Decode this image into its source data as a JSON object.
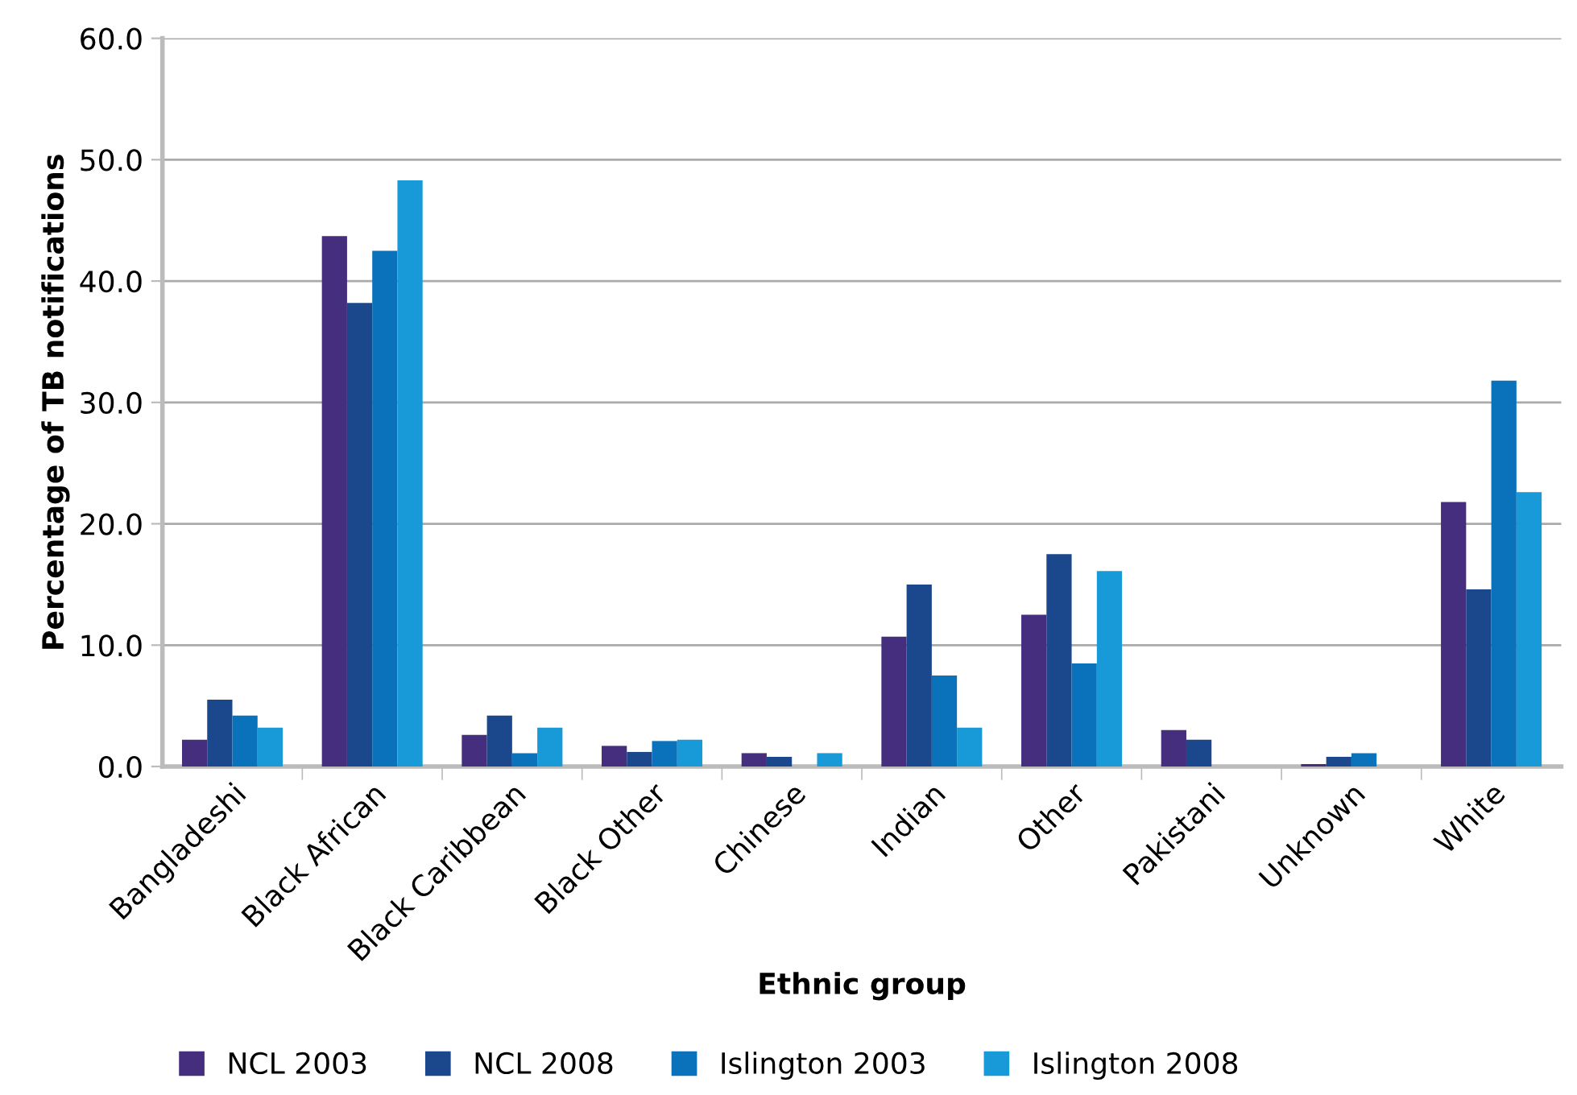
{
  "chart_data": {
    "type": "bar",
    "xlabel": "Ethnic group",
    "ylabel": "Percentage of TB notifications",
    "categories": [
      "Bangladeshi",
      "Black African",
      "Black Caribbean",
      "Black Other",
      "Chinese",
      "Indian",
      "Other",
      "Pakistani",
      "Unknown",
      "White"
    ],
    "series": [
      {
        "name": "NCL 2003",
        "color": "#452e7e",
        "values": [
          2.2,
          43.7,
          2.6,
          1.7,
          1.1,
          10.7,
          12.5,
          3.0,
          0.2,
          21.8
        ]
      },
      {
        "name": "NCL 2008",
        "color": "#1b488c",
        "values": [
          5.5,
          38.2,
          4.2,
          1.2,
          0.8,
          15.0,
          17.5,
          2.2,
          0.8,
          14.6
        ]
      },
      {
        "name": "Islington 2003",
        "color": "#0a72bb",
        "values": [
          4.2,
          42.5,
          1.1,
          2.1,
          0,
          7.5,
          8.5,
          0,
          1.1,
          31.8
        ]
      },
      {
        "name": "Islington 2008",
        "color": "#199ad8",
        "values": [
          3.2,
          48.3,
          3.2,
          2.2,
          1.1,
          3.2,
          16.1,
          0,
          0,
          22.6
        ]
      }
    ],
    "ylim": [
      0,
      60
    ],
    "yticks": [
      {
        "value": 0,
        "label": "0.0"
      },
      {
        "value": 10,
        "label": "10.0"
      },
      {
        "value": 20,
        "label": "20.0"
      },
      {
        "value": 30,
        "label": "30.0"
      },
      {
        "value": 40,
        "label": "40.0"
      },
      {
        "value": 50,
        "label": "50.0"
      },
      {
        "value": 60,
        "label": "60.0"
      }
    ],
    "grid": "y",
    "legend": "bottom"
  }
}
